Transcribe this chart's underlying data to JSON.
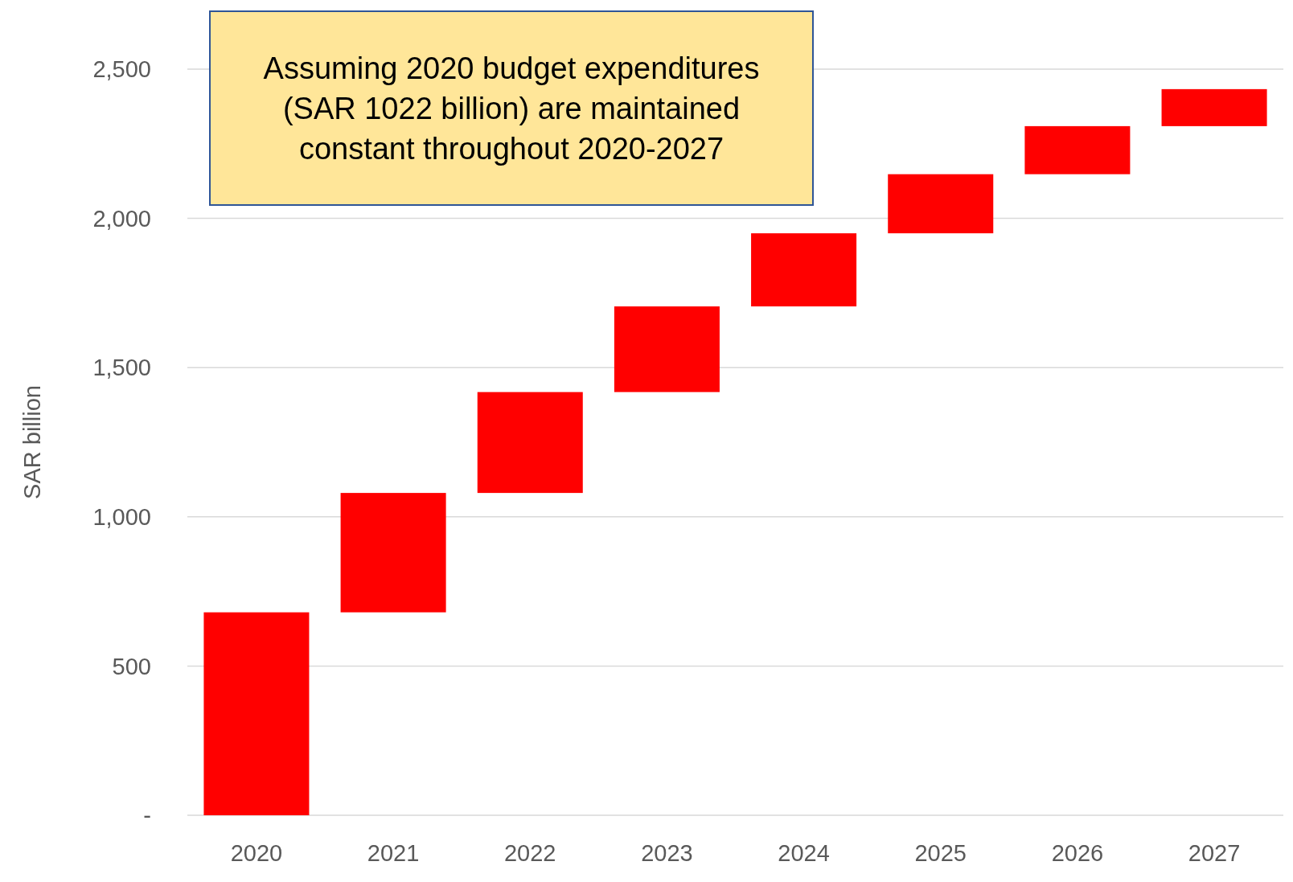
{
  "chart_data": {
    "type": "bar",
    "ylabel": "SAR billion",
    "categories": [
      "2020",
      "2021",
      "2022",
      "2023",
      "2024",
      "2025",
      "2026",
      "2027"
    ],
    "values": [
      680,
      400,
      338,
      287,
      245,
      198,
      161,
      124
    ],
    "base": [
      0,
      680,
      1080,
      1418,
      1705,
      1950,
      2148,
      2309
    ],
    "color": "#ff0000",
    "ylim": [
      0,
      2500
    ],
    "yticks": [
      {
        "value": 0,
        "label": "-"
      },
      500,
      {
        "value": 1000,
        "label": "1,000"
      },
      {
        "value": 1500,
        "label": "1,500"
      },
      {
        "value": 2000,
        "label": "2,000"
      },
      {
        "value": 2500,
        "label": "2,500"
      }
    ],
    "grid": "y",
    "annotations": [
      "Assuming 2020 budget expenditures\n(SAR 1022 billion) are maintained\nconstant throughout 2020-2027"
    ]
  }
}
